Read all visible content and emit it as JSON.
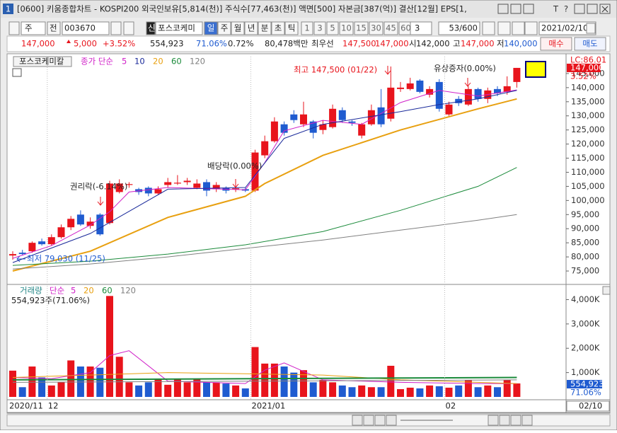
{
  "title_bar": {
    "number": "1",
    "title": "[0600] 키움종합차트 - KOSPI200 외국인보유[5,814(천)] 주식수[77,463(천)] 액면[500] 자본금[387(억)] 결산[12월] EPS[1,",
    "controls": [
      "T",
      "?"
    ]
  },
  "toolbar": {
    "period": "주",
    "mode": "전",
    "code": "003670",
    "name_icon": "신",
    "name": "포스코케미",
    "units": [
      "일",
      "주",
      "월",
      "년",
      "분",
      "초",
      "틱"
    ],
    "intervals": [
      "1",
      "3",
      "5",
      "10",
      "15",
      "30",
      "45",
      "60"
    ],
    "custom": "3",
    "count": "53/600",
    "date": "2021/02/10"
  },
  "quote": {
    "price": "147,000",
    "change": "5,000",
    "change_pct": "+3.52%",
    "volume": "554,923",
    "volume_ratio": "71.06%",
    "turnover": "0.72%",
    "amount": "80,478백만",
    "best_label": "최우선",
    "ask": "147,500",
    "bid": "147,000",
    "open_label": "시",
    "open": "142,000",
    "high_label": "고",
    "high": "147,000",
    "low_label": "저",
    "low": "140,000",
    "buy": "매수",
    "sell": "매도"
  },
  "chart_data": [
    {
      "type": "candlestick",
      "title": "포스코케미칼",
      "ma_label": "종가 단순",
      "up_color": "#e8141c",
      "down_color": "#1f5bd0",
      "open": [
        80500,
        81500,
        82000,
        85500,
        84500,
        87000,
        90500,
        95000,
        91000,
        95000,
        92000,
        103000,
        105500,
        104000,
        104500,
        102500,
        105500,
        106000,
        106500,
        104500,
        106500,
        104000,
        104500,
        104000,
        104000,
        103500,
        116000,
        121000,
        127000,
        130500,
        127000,
        128000,
        125000,
        126000,
        132000,
        128000,
        123000,
        127000,
        133000,
        129000,
        139500,
        139500,
        142500,
        137500,
        142000,
        130500,
        136000,
        134000,
        139500,
        136000,
        139500,
        138500,
        142000
      ],
      "high": [
        82000,
        82500,
        85500,
        86500,
        88000,
        91500,
        94500,
        96500,
        94000,
        95500,
        107000,
        107500,
        106500,
        104500,
        105000,
        105000,
        108000,
        109000,
        108000,
        107500,
        107500,
        106500,
        105000,
        105500,
        104500,
        118000,
        123000,
        129500,
        128000,
        132000,
        135000,
        128500,
        128500,
        134000,
        133000,
        128500,
        127500,
        134000,
        139500,
        147500,
        142000,
        143500,
        143000,
        140500,
        143000,
        135000,
        137000,
        140500,
        140000,
        140000,
        140500,
        144000,
        147000
      ],
      "low": [
        79030,
        80500,
        81500,
        84000,
        84000,
        86500,
        89500,
        91000,
        90000,
        87500,
        91500,
        102500,
        104500,
        102000,
        101500,
        102000,
        104500,
        105500,
        105500,
        104000,
        101500,
        103000,
        102500,
        103000,
        103000,
        103000,
        115000,
        120500,
        123000,
        127500,
        126000,
        122000,
        123500,
        125500,
        127500,
        126500,
        122000,
        126500,
        126000,
        128000,
        138500,
        139000,
        138000,
        136500,
        131500,
        130000,
        133500,
        133500,
        135000,
        134500,
        137000,
        137500,
        140000
      ],
      "close": [
        81000,
        81000,
        85000,
        84500,
        87000,
        90500,
        93500,
        91500,
        92500,
        88000,
        106000,
        106000,
        105800,
        103000,
        102500,
        104000,
        106500,
        106300,
        107000,
        106000,
        103500,
        105500,
        103500,
        104300,
        103500,
        117000,
        121000,
        128000,
        124000,
        128500,
        130500,
        124000,
        127000,
        132500,
        128500,
        127500,
        127000,
        132000,
        127000,
        140000,
        140000,
        141500,
        138500,
        139500,
        132500,
        134000,
        134500,
        139500,
        136000,
        139000,
        138000,
        140500,
        147000
      ],
      "series": [
        {
          "name": "5",
          "color": "#d020c8",
          "x": [
            0,
            4,
            8,
            10,
            12,
            16,
            24,
            26,
            28,
            32,
            36,
            40,
            44,
            48,
            52
          ],
          "values": [
            79500,
            84000,
            91300,
            96000,
            103000,
            104600,
            103800,
            113400,
            124700,
            128400,
            127000,
            134700,
            139000,
            137000,
            139200
          ]
        },
        {
          "name": "10",
          "color": "#1a2a9a",
          "x": [
            0,
            8,
            16,
            24,
            28,
            32,
            40,
            44,
            48,
            52
          ],
          "values": [
            78000,
            88300,
            104000,
            104600,
            122000,
            127000,
            131500,
            134000,
            136000,
            139000
          ]
        },
        {
          "name": "20",
          "color": "#e8a010",
          "x": [
            0,
            8,
            16,
            24,
            26,
            32,
            40,
            48,
            52
          ],
          "values": [
            75000,
            82000,
            94000,
            101500,
            106000,
            116000,
            125000,
            132500,
            136000
          ]
        },
        {
          "name": "60",
          "color": "#1a8a3a",
          "x": [
            0,
            8,
            16,
            24,
            32,
            40,
            48,
            52
          ],
          "values": [
            77000,
            78500,
            81000,
            84300,
            89000,
            96500,
            105000,
            111700
          ]
        },
        {
          "name": "120",
          "color": "#808080",
          "x": [
            0,
            8,
            16,
            24,
            32,
            40,
            48,
            52
          ],
          "values": [
            75700,
            77500,
            80000,
            83000,
            86000,
            89500,
            93000,
            95000
          ]
        }
      ],
      "ylim": [
        71250,
        151000
      ],
      "yticks": [
        {
          "value": 75000,
          "label": "75,000"
        },
        {
          "value": 80000,
          "label": "80,000"
        },
        {
          "value": 85000,
          "label": "85,000"
        },
        {
          "value": 90000,
          "label": "90,000"
        },
        {
          "value": 95000,
          "label": "95,000"
        },
        {
          "value": 100000,
          "label": "100,000"
        },
        {
          "value": 105000,
          "label": "105,000"
        },
        {
          "value": 110000,
          "label": "110,000"
        },
        {
          "value": 115000,
          "label": "115,000"
        },
        {
          "value": 120000,
          "label": "120,000"
        },
        {
          "value": 125000,
          "label": "125,000"
        },
        {
          "value": 130000,
          "label": "130,000"
        },
        {
          "value": 135000,
          "label": "135,000"
        },
        {
          "value": 140000,
          "label": "140,000"
        },
        {
          "value": 145000,
          "label": "145,000"
        }
      ],
      "annotations": [
        "최고 147,500 (01/22)",
        "유상증자(0.00%)",
        "배당락(0.00%)",
        "권리락(-6.14%)",
        "최저 79,030 (11/25)"
      ],
      "lc_label": "LC:86.01",
      "last_price_label": "147,000",
      "last_change_label": "3.52%"
    },
    {
      "type": "bar",
      "title": "거래량",
      "ma_label": "단순",
      "status": "554,923주(71.06%)",
      "categories": [
        "2020/11",
        null,
        null,
        null,
        "12",
        null,
        null,
        null,
        null,
        null,
        null,
        null,
        null,
        null,
        null,
        null,
        null,
        null,
        null,
        null,
        null,
        null,
        null,
        null,
        null,
        "2021/01",
        null,
        null,
        null,
        null,
        null,
        null,
        null,
        null,
        null,
        null,
        null,
        null,
        null,
        null,
        null,
        null,
        null,
        null,
        null,
        "02",
        null,
        null,
        null,
        null,
        null,
        null,
        null
      ],
      "values": [
        1080000,
        400000,
        1250000,
        800000,
        470000,
        600000,
        1500000,
        1250000,
        1250000,
        1200000,
        4150000,
        1650000,
        600000,
        470000,
        600000,
        750000,
        500000,
        750000,
        600000,
        750000,
        600000,
        600000,
        550000,
        470000,
        350000,
        2050000,
        1370000,
        1370000,
        1250000,
        1000000,
        1100000,
        600000,
        700000,
        600000,
        470000,
        400000,
        470000,
        400000,
        400000,
        1280000,
        320000,
        380000,
        350000,
        470000,
        440000,
        380000,
        470000,
        700000,
        400000,
        470000,
        400000,
        700000,
        554923
      ],
      "series": [
        {
          "name": "5",
          "color": "#d020c8",
          "x": [
            0,
            4,
            8,
            10,
            12,
            16,
            24,
            26,
            28,
            32,
            40,
            48,
            52
          ],
          "values": [
            800000,
            750000,
            1000000,
            1700000,
            1900000,
            650000,
            550000,
            1100000,
            1400000,
            700000,
            600000,
            550000,
            550000
          ]
        },
        {
          "name": "20",
          "color": "#e8a010",
          "x": [
            0,
            16,
            24,
            32,
            40,
            52
          ],
          "values": [
            800000,
            1000000,
            950000,
            900000,
            700000,
            550000
          ]
        },
        {
          "name": "60",
          "color": "#1a8a3a",
          "x": [
            0,
            52
          ],
          "values": [
            700000,
            800000
          ]
        },
        {
          "name": "120",
          "color": "#808080",
          "x": [
            0,
            52
          ],
          "values": [
            600000,
            700000
          ]
        }
      ],
      "ylim": [
        0,
        4450000
      ],
      "yticks": [
        {
          "value": 1000000,
          "label": "1,000K"
        },
        {
          "value": 2000000,
          "label": "2,000K"
        },
        {
          "value": 3000000,
          "label": "3,000K"
        },
        {
          "value": 4000000,
          "label": "4,000K"
        }
      ],
      "last_value_label": "554,923",
      "last_ratio_label": "71.06%",
      "cursor_label": "02/10"
    }
  ]
}
